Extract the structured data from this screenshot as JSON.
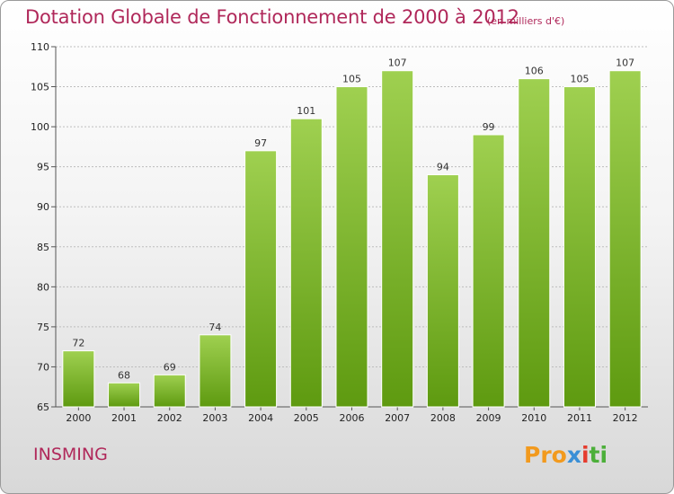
{
  "title": "Dotation Globale de Fonctionnement de 2000 à 2012",
  "unit": "(en milliers d'€)",
  "commune": "INSMING",
  "logo": {
    "p1": "Pro",
    "p2": "x",
    "p3": "i",
    "p4": "ti"
  },
  "colors": {
    "bar_top": "#9fd050",
    "bar_bottom": "#5e9a10",
    "title": "#b0285a"
  },
  "chart_data": {
    "type": "bar",
    "title": "Dotation Globale de Fonctionnement de 2000 à 2012",
    "categories": [
      "2000",
      "2001",
      "2002",
      "2003",
      "2004",
      "2005",
      "2006",
      "2007",
      "2008",
      "2009",
      "2010",
      "2011",
      "2012"
    ],
    "values": [
      72,
      68,
      69,
      74,
      97,
      101,
      105,
      107,
      94,
      99,
      106,
      105,
      107
    ],
    "ylim": [
      65,
      110
    ],
    "yticks": [
      65,
      70,
      75,
      80,
      85,
      90,
      95,
      100,
      105,
      110
    ],
    "grid": true,
    "xlabel": "",
    "ylabel": ""
  }
}
